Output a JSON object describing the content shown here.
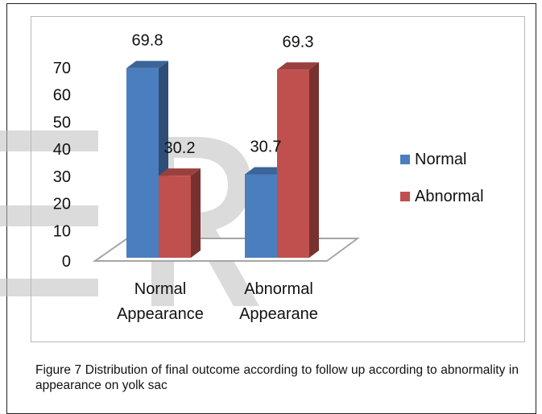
{
  "chart_data": {
    "type": "bar",
    "style": "3d-clustered-column",
    "categories": [
      {
        "line1": "Normal",
        "line2": "Appearance"
      },
      {
        "line1": "Abnormal",
        "line2": "Appearane"
      }
    ],
    "series": [
      {
        "name": "Normal",
        "color": "#4a7ebf",
        "values": [
          69.8,
          30.7
        ]
      },
      {
        "name": "Abnormal",
        "color": "#c0504d",
        "values": [
          30.2,
          69.3
        ]
      }
    ],
    "ylim": [
      0,
      70
    ],
    "yticks": [
      "0",
      "10",
      "20",
      "30",
      "40",
      "50",
      "60",
      "70"
    ],
    "data_labels": [
      "69.8",
      "30.2",
      "30.7",
      "69.3"
    ],
    "legend_placement": "right",
    "grid": false
  },
  "caption": "Figure 7 Distribution of final outcome according to follow up according to abnormality in appearance on yolk sac"
}
